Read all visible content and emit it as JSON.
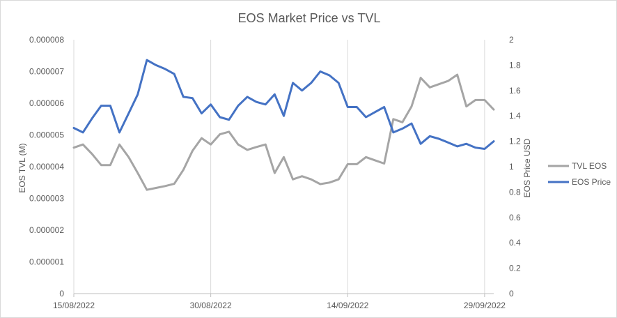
{
  "chart_data": {
    "type": "line",
    "title": "EOS Market Price vs TVL",
    "xlabel": "",
    "ylabel_left": "EOS TVL (M)",
    "ylabel_right": "EOS Price USD",
    "ylim_left": [
      0,
      8e-06
    ],
    "ylim_right": [
      0,
      2
    ],
    "yticks_left": [
      "0",
      "0.000001",
      "0.000002",
      "0.000003",
      "0.000004",
      "0.000005",
      "0.000006",
      "0.000007",
      "0.000008"
    ],
    "yticks_right": [
      "0",
      "0.2",
      "0.4",
      "0.6",
      "0.8",
      "1",
      "1.2",
      "1.4",
      "1.6",
      "1.8",
      "2"
    ],
    "x_tick_labels": [
      "15/08/2022",
      "30/08/2022",
      "14/09/2022",
      "29/09/2022"
    ],
    "x_tick_days": [
      0,
      15,
      30,
      45
    ],
    "x_range_days": [
      0,
      46
    ],
    "grid": "vertical",
    "legend_position": "right",
    "series": [
      {
        "name": "TVL EOS",
        "axis": "left",
        "color": "#a5a5a5",
        "values": [
          4.6e-06,
          4.7e-06,
          4.4e-06,
          4.05e-06,
          4.05e-06,
          4.7e-06,
          4.3e-06,
          3.8e-06,
          3.27e-06,
          3.33e-06,
          3.39e-06,
          3.46e-06,
          3.9e-06,
          4.5e-06,
          4.9e-06,
          4.7e-06,
          5.02e-06,
          5.1e-06,
          4.7e-06,
          4.53e-06,
          4.62e-06,
          4.7e-06,
          3.8e-06,
          4.3e-06,
          3.6e-06,
          3.7e-06,
          3.6e-06,
          3.45e-06,
          3.5e-06,
          3.6e-06,
          4.08e-06,
          4.08e-06,
          4.3e-06,
          4.2e-06,
          4.1e-06,
          5.5e-06,
          5.4e-06,
          5.9e-06,
          6.8e-06,
          6.5e-06,
          6.6e-06,
          6.7e-06,
          6.9e-06,
          5.9e-06,
          6.1e-06,
          6.1e-06,
          5.8e-06
        ]
      },
      {
        "name": "EOS Price",
        "axis": "right",
        "color": "#4472c4",
        "values": [
          1.305,
          1.27,
          1.38,
          1.48,
          1.48,
          1.27,
          1.42,
          1.57,
          1.84,
          1.8,
          1.77,
          1.73,
          1.55,
          1.54,
          1.42,
          1.49,
          1.39,
          1.37,
          1.48,
          1.55,
          1.51,
          1.49,
          1.57,
          1.4,
          1.66,
          1.6,
          1.66,
          1.75,
          1.72,
          1.66,
          1.47,
          1.47,
          1.39,
          1.43,
          1.47,
          1.27,
          1.3,
          1.34,
          1.18,
          1.24,
          1.22,
          1.19,
          1.16,
          1.18,
          1.15,
          1.14,
          1.2
        ]
      }
    ]
  }
}
